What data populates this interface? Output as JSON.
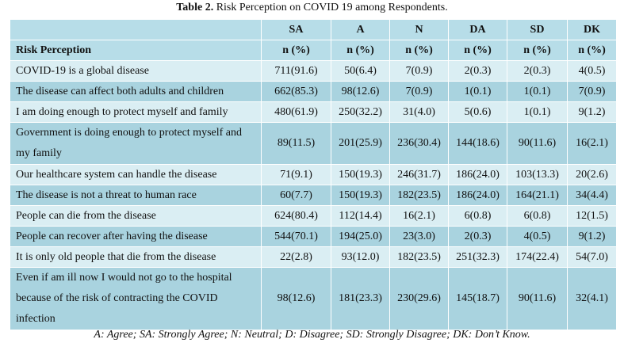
{
  "caption": {
    "label": "Table 2.",
    "text": " Risk Perception on COVID 19 among Respondents."
  },
  "columns": [
    "SA",
    "A",
    "N",
    "DA",
    "SD",
    "DK"
  ],
  "subheader": {
    "label": "Risk Perception",
    "units": [
      "n (%)",
      "n (%)",
      "n (%)",
      "n (%)",
      "n (%)",
      "n (%)"
    ]
  },
  "rows": [
    {
      "label": "COVID-19 is a global disease",
      "values": [
        "711(91.6)",
        "50(6.4)",
        "7(0.9)",
        "2(0.3)",
        "2(0.3)",
        "4(0.5)"
      ]
    },
    {
      "label": "The disease can affect both adults and children",
      "values": [
        "662(85.3)",
        "98(12.6)",
        "7(0.9)",
        "1(0.1)",
        "1(0.1)",
        "7(0.9)"
      ]
    },
    {
      "label": "I am doing enough to protect myself and family",
      "values": [
        "480(61.9)",
        "250(32.2)",
        "31(4.0)",
        "5(0.6)",
        "1(0.1)",
        "9(1.2)"
      ]
    },
    {
      "label": "Government is doing enough to protect myself and my family",
      "values": [
        "89(11.5)",
        "201(25.9)",
        "236(30.4)",
        "144(18.6)",
        "90(11.6)",
        "16(2.1)"
      ]
    },
    {
      "label": "Our healthcare system can handle the disease",
      "values": [
        "71(9.1)",
        "150(19.3)",
        "246(31.7)",
        "186(24.0)",
        "103(13.3)",
        "20(2.6)"
      ]
    },
    {
      "label": "The disease is not a threat to human race",
      "values": [
        "60(7.7)",
        "150(19.3)",
        "182(23.5)",
        "186(24.0)",
        "164(21.1)",
        "34(4.4)"
      ]
    },
    {
      "label": "People can die from the disease",
      "values": [
        "624(80.4)",
        "112(14.4)",
        "16(2.1)",
        "6(0.8)",
        "6(0.8)",
        "12(1.5)"
      ]
    },
    {
      "label": "People can recover after having the disease",
      "values": [
        "544(70.1)",
        "194(25.0)",
        "23(3.0)",
        "2(0.3)",
        "4(0.5)",
        "9(1.2)"
      ]
    },
    {
      "label": "It is only old people that die from the disease",
      "values": [
        "22(2.8)",
        "93(12.0)",
        "182(23.5)",
        "251(32.3)",
        "174(22.4)",
        "54(7.0)"
      ]
    },
    {
      "label": "Even if am ill now I would not go to the hospital because of the risk of contracting the COVID infection",
      "values": [
        "98(12.6)",
        "181(23.3)",
        "230(29.6)",
        "145(18.7)",
        "90(11.6)",
        "32(4.1)"
      ]
    }
  ],
  "footnote": "A: Agree; SA: Strongly Agree; N: Neutral; D: Disagree; SD: Strongly Disagree; DK: Don’t Know.",
  "colors": {
    "header": "#b7dde8",
    "row_light": "#daeef3",
    "row_dark": "#a9d3df"
  }
}
